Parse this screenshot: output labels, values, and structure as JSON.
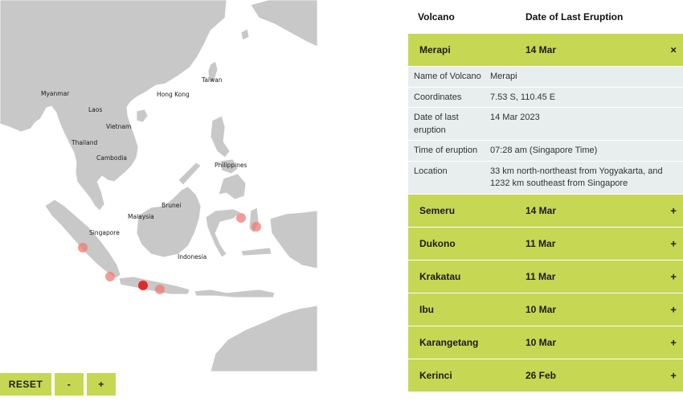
{
  "map": {
    "labels": {
      "myanmar": "Myanmar",
      "laos": "Laos",
      "vietnam": "Vietnam",
      "thailand": "Thailand",
      "cambodia": "Cambodia",
      "taiwan": "Taiwan",
      "hong_kong": "Hong Kong",
      "philippines": "Philippines",
      "brunei": "Brunei",
      "malaysia": "Malaysia",
      "singapore": "Singapore",
      "indonesia": "Indonesia"
    },
    "land_color": "#c8c8c8",
    "marker_color": "#f07a73",
    "active_marker_color": "#e32222"
  },
  "controls": {
    "reset": "RESET",
    "zoom_out": "-",
    "zoom_in": "+"
  },
  "table": {
    "header": {
      "volcano": "Volcano",
      "date": "Date of Last Eruption"
    },
    "accent_color": "#c6d754",
    "expanded": {
      "name": "Merapi",
      "date": "14 Mar",
      "toggle": "×",
      "details": [
        {
          "key": "Name of Volcano",
          "value": "Merapi"
        },
        {
          "key": "Coordinates",
          "value": "7.53 S, 110.45 E"
        },
        {
          "key": "Date of last eruption",
          "value": "14 Mar 2023"
        },
        {
          "key": "Time of eruption",
          "value": "07:28 am (Singapore Time)"
        },
        {
          "key": "Location",
          "value": "33 km north-northeast from Yogyakarta, and 1232 km southeast from Singapore"
        }
      ]
    },
    "rows": [
      {
        "name": "Semeru",
        "date": "14 Mar",
        "toggle": "+"
      },
      {
        "name": "Dukono",
        "date": "11 Mar",
        "toggle": "+"
      },
      {
        "name": "Krakatau",
        "date": "11 Mar",
        "toggle": "+"
      },
      {
        "name": "Ibu",
        "date": "10 Mar",
        "toggle": "+"
      },
      {
        "name": "Karangetang",
        "date": "10 Mar",
        "toggle": "+"
      },
      {
        "name": "Kerinci",
        "date": "26 Feb",
        "toggle": "+"
      }
    ]
  }
}
